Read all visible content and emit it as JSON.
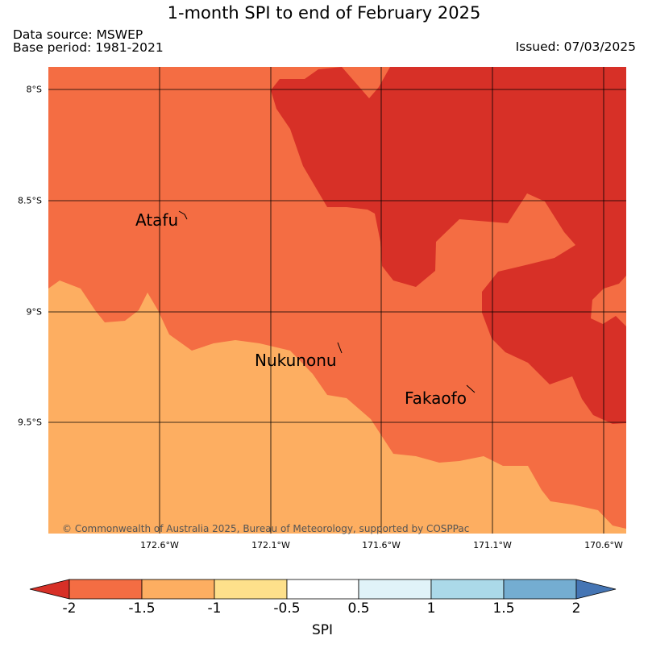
{
  "title": "1-month SPI to end of February 2025",
  "data_source": "Data source: MSWEP",
  "base_period": "Base period: 1981-2021",
  "issued": "Issued: 07/03/2025",
  "copyright": "© Commonwealth of Australia 2025, Bureau of Meteorology, supported by COSPPac",
  "map": {
    "lon_range": [
      -173.1,
      -170.5
    ],
    "lat_range": [
      -10.0,
      -7.9
    ],
    "x_ticks": [
      "172.6°W",
      "172.1°W",
      "171.6°W",
      "171.1°W",
      "170.6°W"
    ],
    "y_ticks": [
      "8°S",
      "8.5°S",
      "9°S",
      "9.5°S"
    ],
    "places": [
      {
        "name": "Atafu",
        "lon": -172.52,
        "lat": -8.56
      },
      {
        "name": "Nukunonu",
        "lon": -171.83,
        "lat": -9.17
      },
      {
        "name": "Fakaofo",
        "lon": -171.2,
        "lat": -9.38
      }
    ]
  },
  "colorbar": {
    "label": "SPI",
    "ticks": [
      "-2",
      "-1.5",
      "-1",
      "-0.5",
      "0.5",
      "1",
      "1.5",
      "2"
    ],
    "colors": {
      "below_-2": "#d73027",
      "-2_to_-1.5": "#f46d43",
      "-1.5_to_-1": "#fdae61",
      "-1_to_-0.5": "#fee08b",
      "-0.5_to_0.5": "#ffffff",
      "0.5_to_1": "#e0f3f8",
      "1_to_1.5": "#abd9e9",
      "1.5_to_2": "#74add1",
      "above_2": "#4575b4"
    }
  }
}
